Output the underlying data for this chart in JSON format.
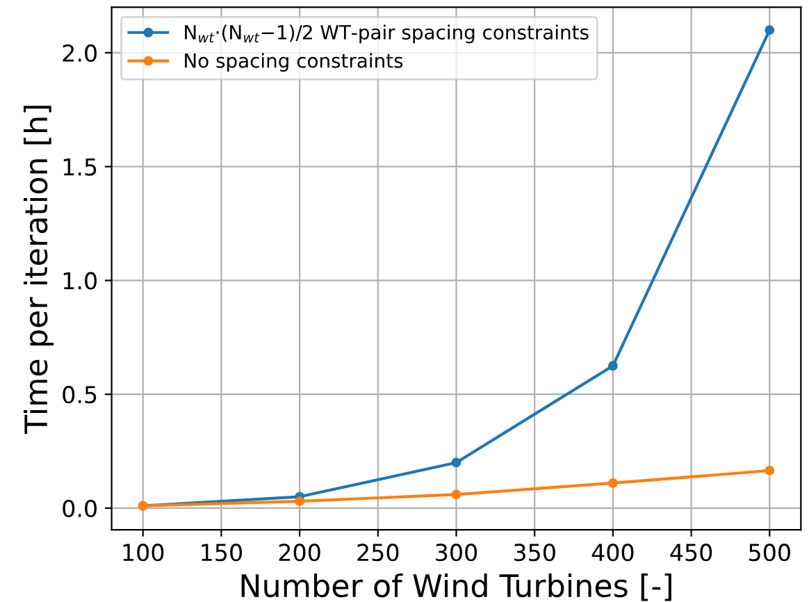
{
  "chart_data": {
    "type": "line",
    "xlabel": "Number of Wind Turbines [-]",
    "ylabel": "Time per iteration [h]",
    "x": [
      100,
      200,
      300,
      400,
      500
    ],
    "series": [
      {
        "name": "N$_{wt}$·(N$_{wt}$−1)/2 WT-pair spacing constraints",
        "color": "#1f77b4",
        "values": [
          0.01,
          0.05,
          0.2,
          0.625,
          2.1
        ]
      },
      {
        "name": "No spacing constraints",
        "color": "#ff7f0e",
        "values": [
          0.01,
          0.03,
          0.06,
          0.11,
          0.165
        ]
      }
    ],
    "xlim": [
      80,
      520
    ],
    "xticks": [
      100,
      150,
      200,
      250,
      300,
      350,
      400,
      450,
      500
    ],
    "ylim": [
      -0.095,
      2.2
    ],
    "yticks": [
      {
        "value": 0,
        "label": "0.0"
      },
      0.5,
      {
        "value": 1,
        "label": "1.0"
      },
      1.5,
      {
        "value": 2,
        "label": "2.0"
      }
    ],
    "grid": true,
    "legend": "top left",
    "marker": "circle",
    "line_style": "solid"
  }
}
